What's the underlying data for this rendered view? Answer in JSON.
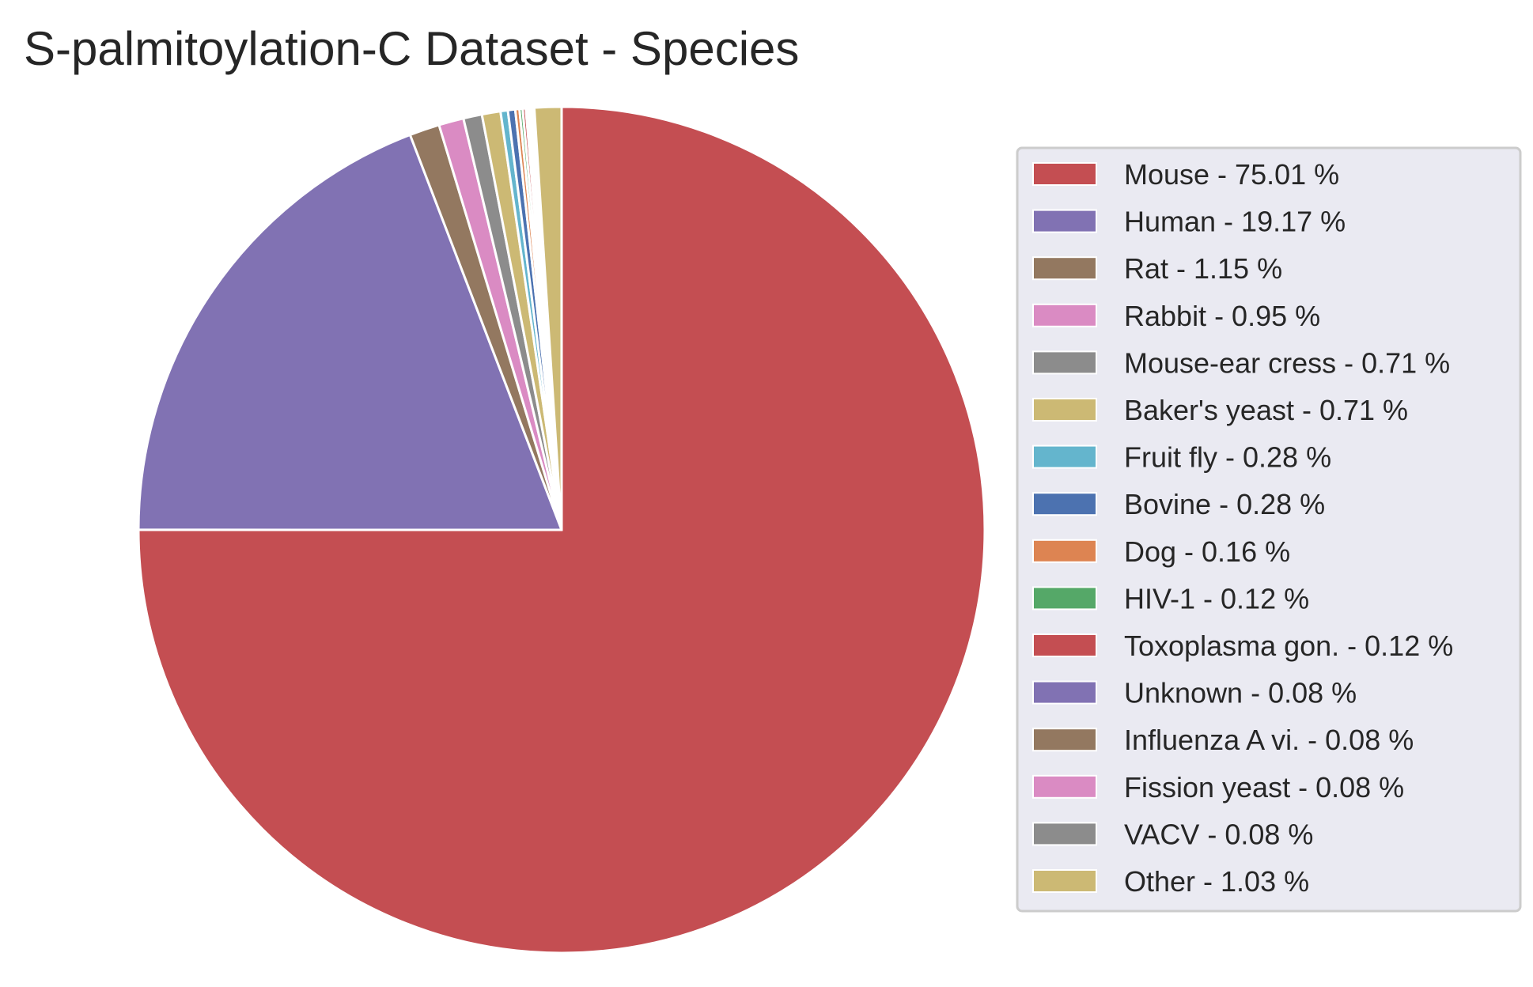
{
  "chart_data": {
    "type": "pie",
    "title": "S-palmitoylation-C Dataset - Species",
    "start_angle_deg": 90,
    "direction": "clockwise",
    "legend_location": "right",
    "slices": [
      {
        "label": "Mouse",
        "value": 75.01,
        "legend": "Mouse - 75.01 %",
        "color": "#c44e52"
      },
      {
        "label": "Human",
        "value": 19.17,
        "legend": "Human - 19.17 %",
        "color": "#8172b3"
      },
      {
        "label": "Rat",
        "value": 1.15,
        "legend": "Rat - 1.15 %",
        "color": "#937860"
      },
      {
        "label": "Rabbit",
        "value": 0.95,
        "legend": "Rabbit - 0.95 %",
        "color": "#da8bc3"
      },
      {
        "label": "Mouse-ear cress",
        "value": 0.71,
        "legend": "Mouse-ear cress - 0.71 %",
        "color": "#8c8c8c"
      },
      {
        "label": "Baker's yeast",
        "value": 0.71,
        "legend": "Baker's yeast - 0.71 %",
        "color": "#ccb974"
      },
      {
        "label": "Fruit fly",
        "value": 0.28,
        "legend": "Fruit fly - 0.28 %",
        "color": "#64b5cd"
      },
      {
        "label": "Bovine",
        "value": 0.28,
        "legend": "Bovine - 0.28 %",
        "color": "#4c72b0"
      },
      {
        "label": "Dog",
        "value": 0.16,
        "legend": "Dog - 0.16 %",
        "color": "#dd8452"
      },
      {
        "label": "HIV-1",
        "value": 0.12,
        "legend": "HIV-1 - 0.12 %",
        "color": "#55a868"
      },
      {
        "label": "Toxoplasma gon.",
        "value": 0.12,
        "legend": "Toxoplasma gon. - 0.12 %",
        "color": "#c44e52"
      },
      {
        "label": "Unknown",
        "value": 0.08,
        "legend": "Unknown - 0.08 %",
        "color": "#8172b3"
      },
      {
        "label": "Influenza A vi.",
        "value": 0.08,
        "legend": "Influenza A vi. - 0.08 %",
        "color": "#937860"
      },
      {
        "label": "Fission yeast",
        "value": 0.08,
        "legend": "Fission yeast - 0.08 %",
        "color": "#da8bc3"
      },
      {
        "label": "VACV",
        "value": 0.08,
        "legend": "VACV - 0.08 %",
        "color": "#8c8c8c"
      },
      {
        "label": "Other",
        "value": 1.03,
        "legend": "Other - 1.03 %",
        "color": "#ccb974"
      }
    ],
    "legend_background": "#eaeaf2",
    "legend_border": "#cccccc"
  }
}
